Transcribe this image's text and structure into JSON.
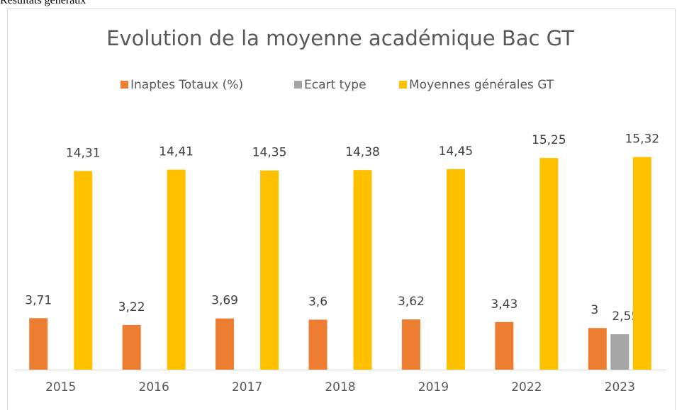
{
  "header": {
    "title": "Résultats généraux"
  },
  "chart_data": {
    "type": "bar",
    "title": "Evolution de la moyenne académique Bac GT",
    "categories": [
      "2015",
      "2016",
      "2017",
      "2018",
      "2019",
      "2022",
      "2023"
    ],
    "series": [
      {
        "name": "Inaptes Totaux (%)",
        "color": "#ED7D31",
        "values": [
          3.71,
          3.22,
          3.69,
          3.6,
          3.62,
          3.43,
          3
        ],
        "value_labels": [
          "3,71",
          "3,22",
          "3,69",
          "3,6",
          "3,62",
          "3,43",
          "3"
        ]
      },
      {
        "name": "Ecart type",
        "color": "#A5A5A5",
        "values": [
          null,
          null,
          null,
          null,
          null,
          null,
          2.55
        ],
        "value_labels": [
          null,
          null,
          null,
          null,
          null,
          null,
          "2,55"
        ]
      },
      {
        "name": "Moyennes générales GT",
        "color": "#FFC000",
        "values": [
          14.31,
          14.41,
          14.35,
          14.38,
          14.45,
          15.25,
          15.32
        ],
        "value_labels": [
          "14,31",
          "14,41",
          "14,35",
          "14,38",
          "14,45",
          "15,25",
          "15,32"
        ]
      }
    ],
    "ylim": [
      0,
      18
    ],
    "legend": "top"
  }
}
